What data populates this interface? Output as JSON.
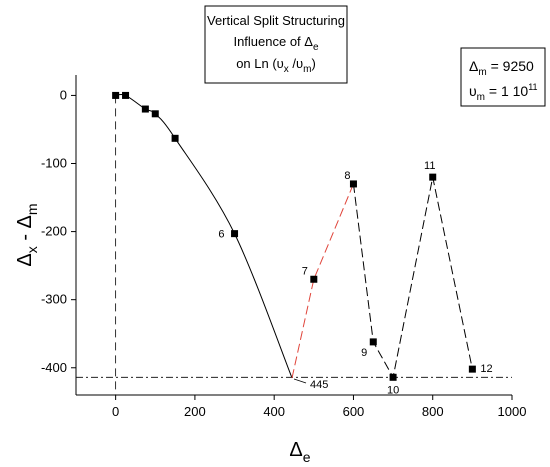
{
  "chart_data": {
    "type": "line",
    "title_lines": [
      "Vertical Split Structuring",
      "Influence of Δe",
      "on Ln (υx /υm)"
    ],
    "xlabel": "Δe",
    "ylabel": "Δx - Δm",
    "xlim": [
      -100,
      1000
    ],
    "ylim": [
      -440,
      30
    ],
    "x_ticks": [
      0,
      200,
      400,
      600,
      800,
      1000
    ],
    "y_ticks": [
      0,
      -100,
      -200,
      -300,
      -400
    ],
    "grid": false,
    "params_box": {
      "delta_m_label": "Δm = 9250",
      "upsilon_m_label": "υm = 1 10",
      "upsilon_m_exp": "11"
    },
    "reference_line_y": -414,
    "series": [
      {
        "style": "solid-black",
        "points": [
          [
            0,
            0
          ],
          [
            25,
            0
          ],
          [
            75,
            -20
          ],
          [
            100,
            -27
          ],
          [
            150,
            -63
          ],
          [
            300,
            -203
          ],
          [
            445,
            -415
          ]
        ]
      },
      {
        "style": "dashed-red",
        "points": [
          [
            445,
            -415
          ],
          [
            500,
            -270
          ],
          [
            600,
            -130
          ]
        ]
      },
      {
        "style": "dashed-black",
        "points": [
          [
            600,
            -130
          ],
          [
            650,
            -362
          ],
          [
            700,
            -414
          ],
          [
            800,
            -120
          ],
          [
            900,
            -402
          ]
        ]
      }
    ],
    "markers": [
      [
        0,
        0
      ],
      [
        25,
        0
      ],
      [
        75,
        -20
      ],
      [
        100,
        -27
      ],
      [
        150,
        -63
      ],
      [
        300,
        -203
      ],
      [
        500,
        -270
      ],
      [
        600,
        -130
      ],
      [
        650,
        -362
      ],
      [
        700,
        -414
      ],
      [
        800,
        -120
      ],
      [
        900,
        -402
      ]
    ],
    "point_labels": [
      {
        "text": "6",
        "x": 300,
        "y": -203
      },
      {
        "text": "7",
        "x": 500,
        "y": -270
      },
      {
        "text": "8",
        "x": 600,
        "y": -130
      },
      {
        "text": "9",
        "x": 650,
        "y": -362
      },
      {
        "text": "445",
        "x": 445,
        "y": -415
      },
      {
        "text": "10",
        "x": 700,
        "y": -414
      },
      {
        "text": "11",
        "x": 800,
        "y": -120
      },
      {
        "text": "12",
        "x": 900,
        "y": -402
      }
    ]
  }
}
